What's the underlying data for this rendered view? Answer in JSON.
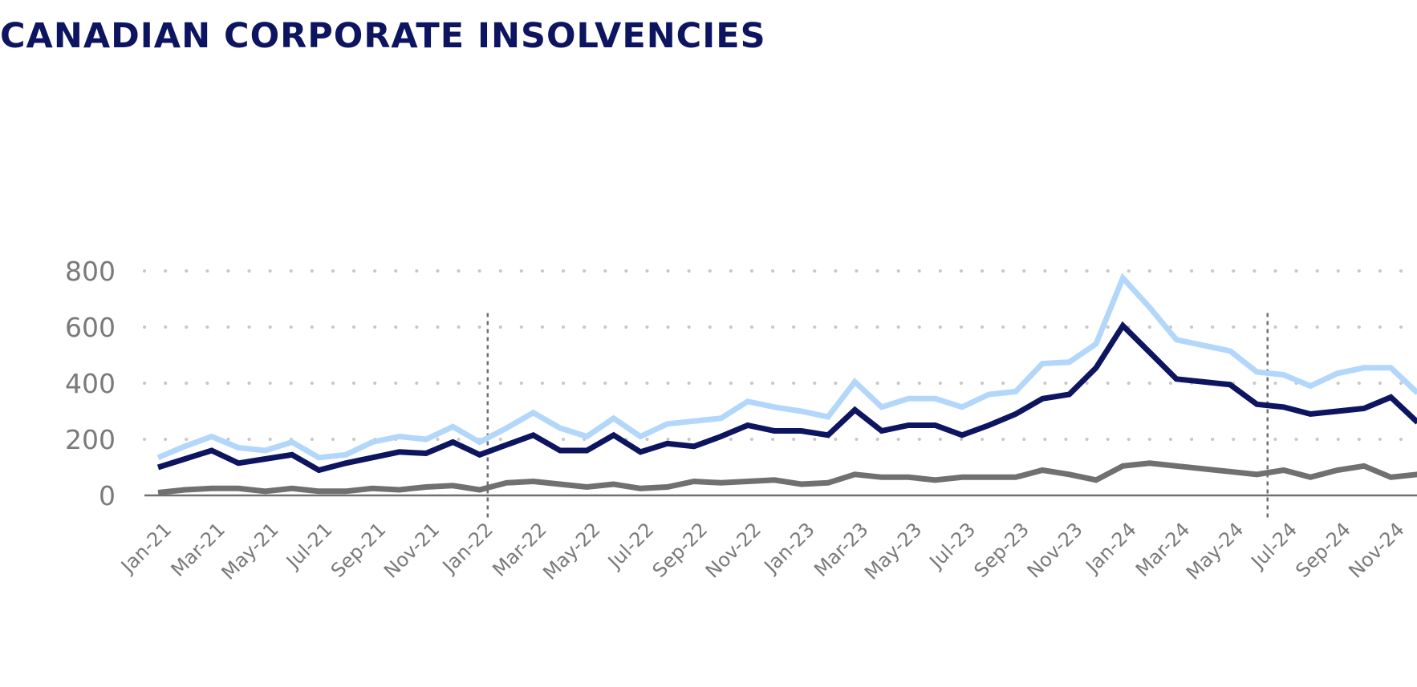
{
  "chart_data": {
    "type": "line",
    "title": "CANADIAN CORPORATE INSOLVENCIES",
    "xlabel": "",
    "ylabel": "",
    "ylim": [
      0,
      800
    ],
    "yticks": [
      "0",
      "200",
      "400",
      "600",
      "800"
    ],
    "grid": "horizontal dotted",
    "legend": "none",
    "x": [
      "Jan-21",
      "Feb-21",
      "Mar-21",
      "Apr-21",
      "May-21",
      "Jun-21",
      "Jul-21",
      "Aug-21",
      "Sep-21",
      "Oct-21",
      "Nov-21",
      "Dec-21",
      "Jan-22",
      "Feb-22",
      "Mar-22",
      "Apr-22",
      "May-22",
      "Jun-22",
      "Jul-22",
      "Aug-22",
      "Sep-22",
      "Oct-22",
      "Nov-22",
      "Dec-22",
      "Jan-23",
      "Feb-23",
      "Mar-23",
      "Apr-23",
      "May-23",
      "Jun-23",
      "Jul-23",
      "Aug-23",
      "Sep-23",
      "Oct-23",
      "Nov-23",
      "Dec-23",
      "Jan-24",
      "Feb-24",
      "Mar-24",
      "Apr-24",
      "May-24",
      "Jun-24",
      "Jul-24",
      "Aug-24",
      "Sep-24",
      "Oct-24",
      "Nov-24",
      "Dec-24"
    ],
    "xtick_labels": [
      "Jan-21",
      "Mar-21",
      "May-21",
      "Jul-21",
      "Sep-21",
      "Nov-21",
      "Jan-22",
      "Mar-22",
      "May-22",
      "Jul-22",
      "Sep-22",
      "Nov-22",
      "Jan-23",
      "Mar-23",
      "May-23",
      "Jul-23",
      "Sep-23",
      "Nov-23",
      "Jan-24",
      "Mar-24",
      "May-24",
      "Jul-24",
      "Sep-24",
      "Nov-24"
    ],
    "reference_lines_x": [
      "Jan-22",
      "Jun-24"
    ],
    "series": [
      {
        "color": "#b3d7fb",
        "values": [
          135,
          175,
          210,
          170,
          160,
          190,
          135,
          145,
          190,
          210,
          200,
          245,
          190,
          240,
          295,
          240,
          210,
          275,
          210,
          255,
          265,
          275,
          335,
          315,
          300,
          280,
          405,
          315,
          345,
          345,
          315,
          360,
          370,
          470,
          475,
          540,
          775,
          670,
          555,
          535,
          515,
          440,
          430,
          390,
          435,
          455,
          455,
          365
        ]
      },
      {
        "color": "#0d1560",
        "values": [
          100,
          130,
          160,
          115,
          130,
          145,
          90,
          115,
          135,
          155,
          150,
          190,
          145,
          180,
          215,
          160,
          160,
          215,
          155,
          185,
          175,
          210,
          250,
          230,
          230,
          215,
          305,
          230,
          250,
          250,
          215,
          250,
          290,
          345,
          360,
          455,
          605,
          510,
          415,
          405,
          395,
          325,
          315,
          290,
          300,
          310,
          350,
          260
        ]
      },
      {
        "color": "#707070",
        "values": [
          10,
          20,
          25,
          25,
          15,
          25,
          15,
          15,
          25,
          20,
          30,
          35,
          20,
          45,
          50,
          40,
          30,
          40,
          25,
          30,
          50,
          45,
          50,
          55,
          40,
          45,
          75,
          65,
          65,
          55,
          65,
          65,
          65,
          90,
          75,
          55,
          105,
          115,
          105,
          95,
          85,
          75,
          90,
          65,
          90,
          105,
          65,
          75
        ]
      }
    ]
  }
}
